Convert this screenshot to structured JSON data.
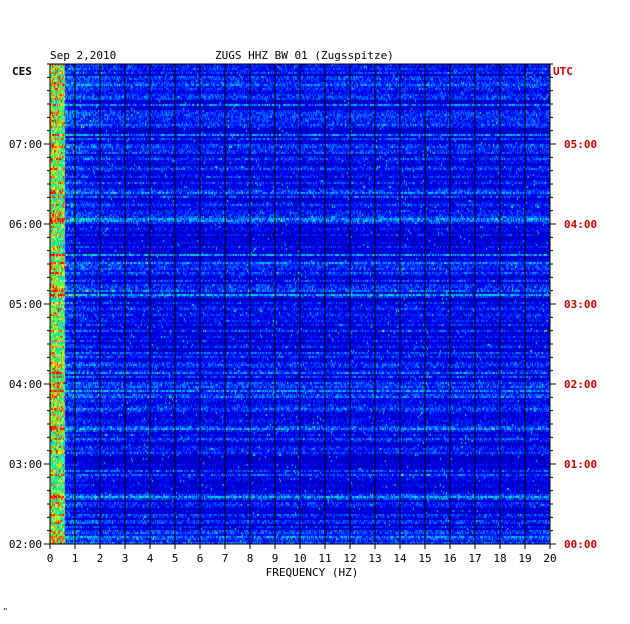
{
  "header": {
    "date": "Sep 2,2010",
    "station": "ZUGS HHZ BW 01 (Zugsspitze)",
    "left_zone": "CES",
    "right_zone": "UTC"
  },
  "footer": {
    "corner_mark": "\""
  },
  "chart_data": {
    "type": "heatmap",
    "title": "ZUGS HHZ BW 01 (Zugsspitze)",
    "xlabel": "FREQUENCY (HZ)",
    "xlim": [
      0,
      20
    ],
    "x_ticks": [
      "0",
      "1",
      "2",
      "3",
      "4",
      "5",
      "6",
      "7",
      "8",
      "9",
      "10",
      "11",
      "12",
      "13",
      "14",
      "15",
      "16",
      "17",
      "18",
      "19",
      "20"
    ],
    "y_left_ticks": [
      "02:00",
      "03:00",
      "04:00",
      "05:00",
      "06:00",
      "07:00"
    ],
    "y_right_ticks": [
      "00:00",
      "01:00",
      "02:00",
      "03:00",
      "04:00",
      "05:00"
    ],
    "y_left_zone": "CES",
    "y_right_zone": "UTC",
    "colors": {
      "background_low": "#00007f",
      "mid": "#0000ff",
      "high": "#00ffff",
      "peak": "#ff0000",
      "grid": "#000000",
      "utc_labels": "#cc0000"
    }
  }
}
